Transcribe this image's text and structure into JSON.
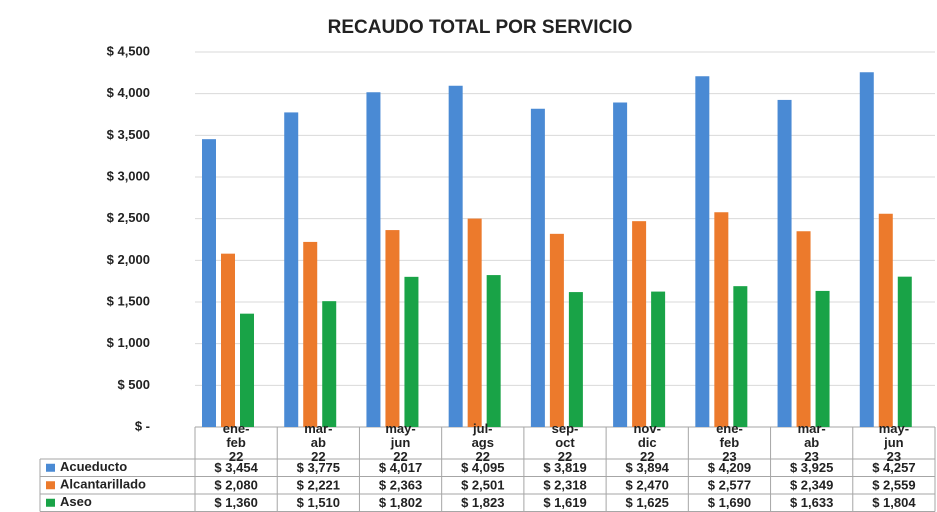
{
  "chart_data": {
    "type": "bar",
    "title": "RECAUDO TOTAL POR SERVICIO",
    "categories": [
      "ene-feb 22",
      "mar-ab 22",
      "may-jun 22",
      "jul-ags 22",
      "sep-oct 22",
      "nov-dic 22",
      "ene-feb 23",
      "mar-ab 23",
      "may-jun 23"
    ],
    "series": [
      {
        "name": "Acueducto",
        "color": "#4a8ad4",
        "values": [
          3454,
          3775,
          4017,
          4095,
          3819,
          3894,
          4209,
          3925,
          4257
        ],
        "value_labels": [
          "$ 3,454",
          "$ 3,775",
          "$ 4,017",
          "$ 4,095",
          "$ 3,819",
          "$ 3,894",
          "$ 4,209",
          "$ 3,925",
          "$ 4,257"
        ]
      },
      {
        "name": "Alcantarillado",
        "color": "#ec7a2c",
        "values": [
          2080,
          2221,
          2363,
          2501,
          2318,
          2470,
          2577,
          2349,
          2559
        ],
        "value_labels": [
          "$ 2,080",
          "$ 2,221",
          "$ 2,363",
          "$ 2,501",
          "$ 2,318",
          "$ 2,470",
          "$ 2,577",
          "$ 2,349",
          "$ 2,559"
        ]
      },
      {
        "name": "Aseo",
        "color": "#19a347",
        "values": [
          1360,
          1510,
          1802,
          1823,
          1619,
          1625,
          1690,
          1633,
          1804
        ],
        "value_labels": [
          "$ 1,360",
          "$ 1,510",
          "$ 1,802",
          "$ 1,823",
          "$ 1,619",
          "$ 1,625",
          "$ 1,690",
          "$ 1,633",
          "$ 1,804"
        ]
      }
    ],
    "ylim": [
      0,
      4500
    ],
    "yticks": [
      {
        "value": 0,
        "label": "$ -"
      },
      {
        "value": 500,
        "label": "$ 500"
      },
      {
        "value": 1000,
        "label": "$ 1,000"
      },
      {
        "value": 1500,
        "label": "$ 1,500"
      },
      {
        "value": 2000,
        "label": "$ 2,000"
      },
      {
        "value": 2500,
        "label": "$ 2,500"
      },
      {
        "value": 3000,
        "label": "$ 3,000"
      },
      {
        "value": 3500,
        "label": "$ 3,500"
      },
      {
        "value": 4000,
        "label": "$ 4,000"
      },
      {
        "value": 4500,
        "label": "$ 4,500"
      }
    ],
    "grid": true
  }
}
